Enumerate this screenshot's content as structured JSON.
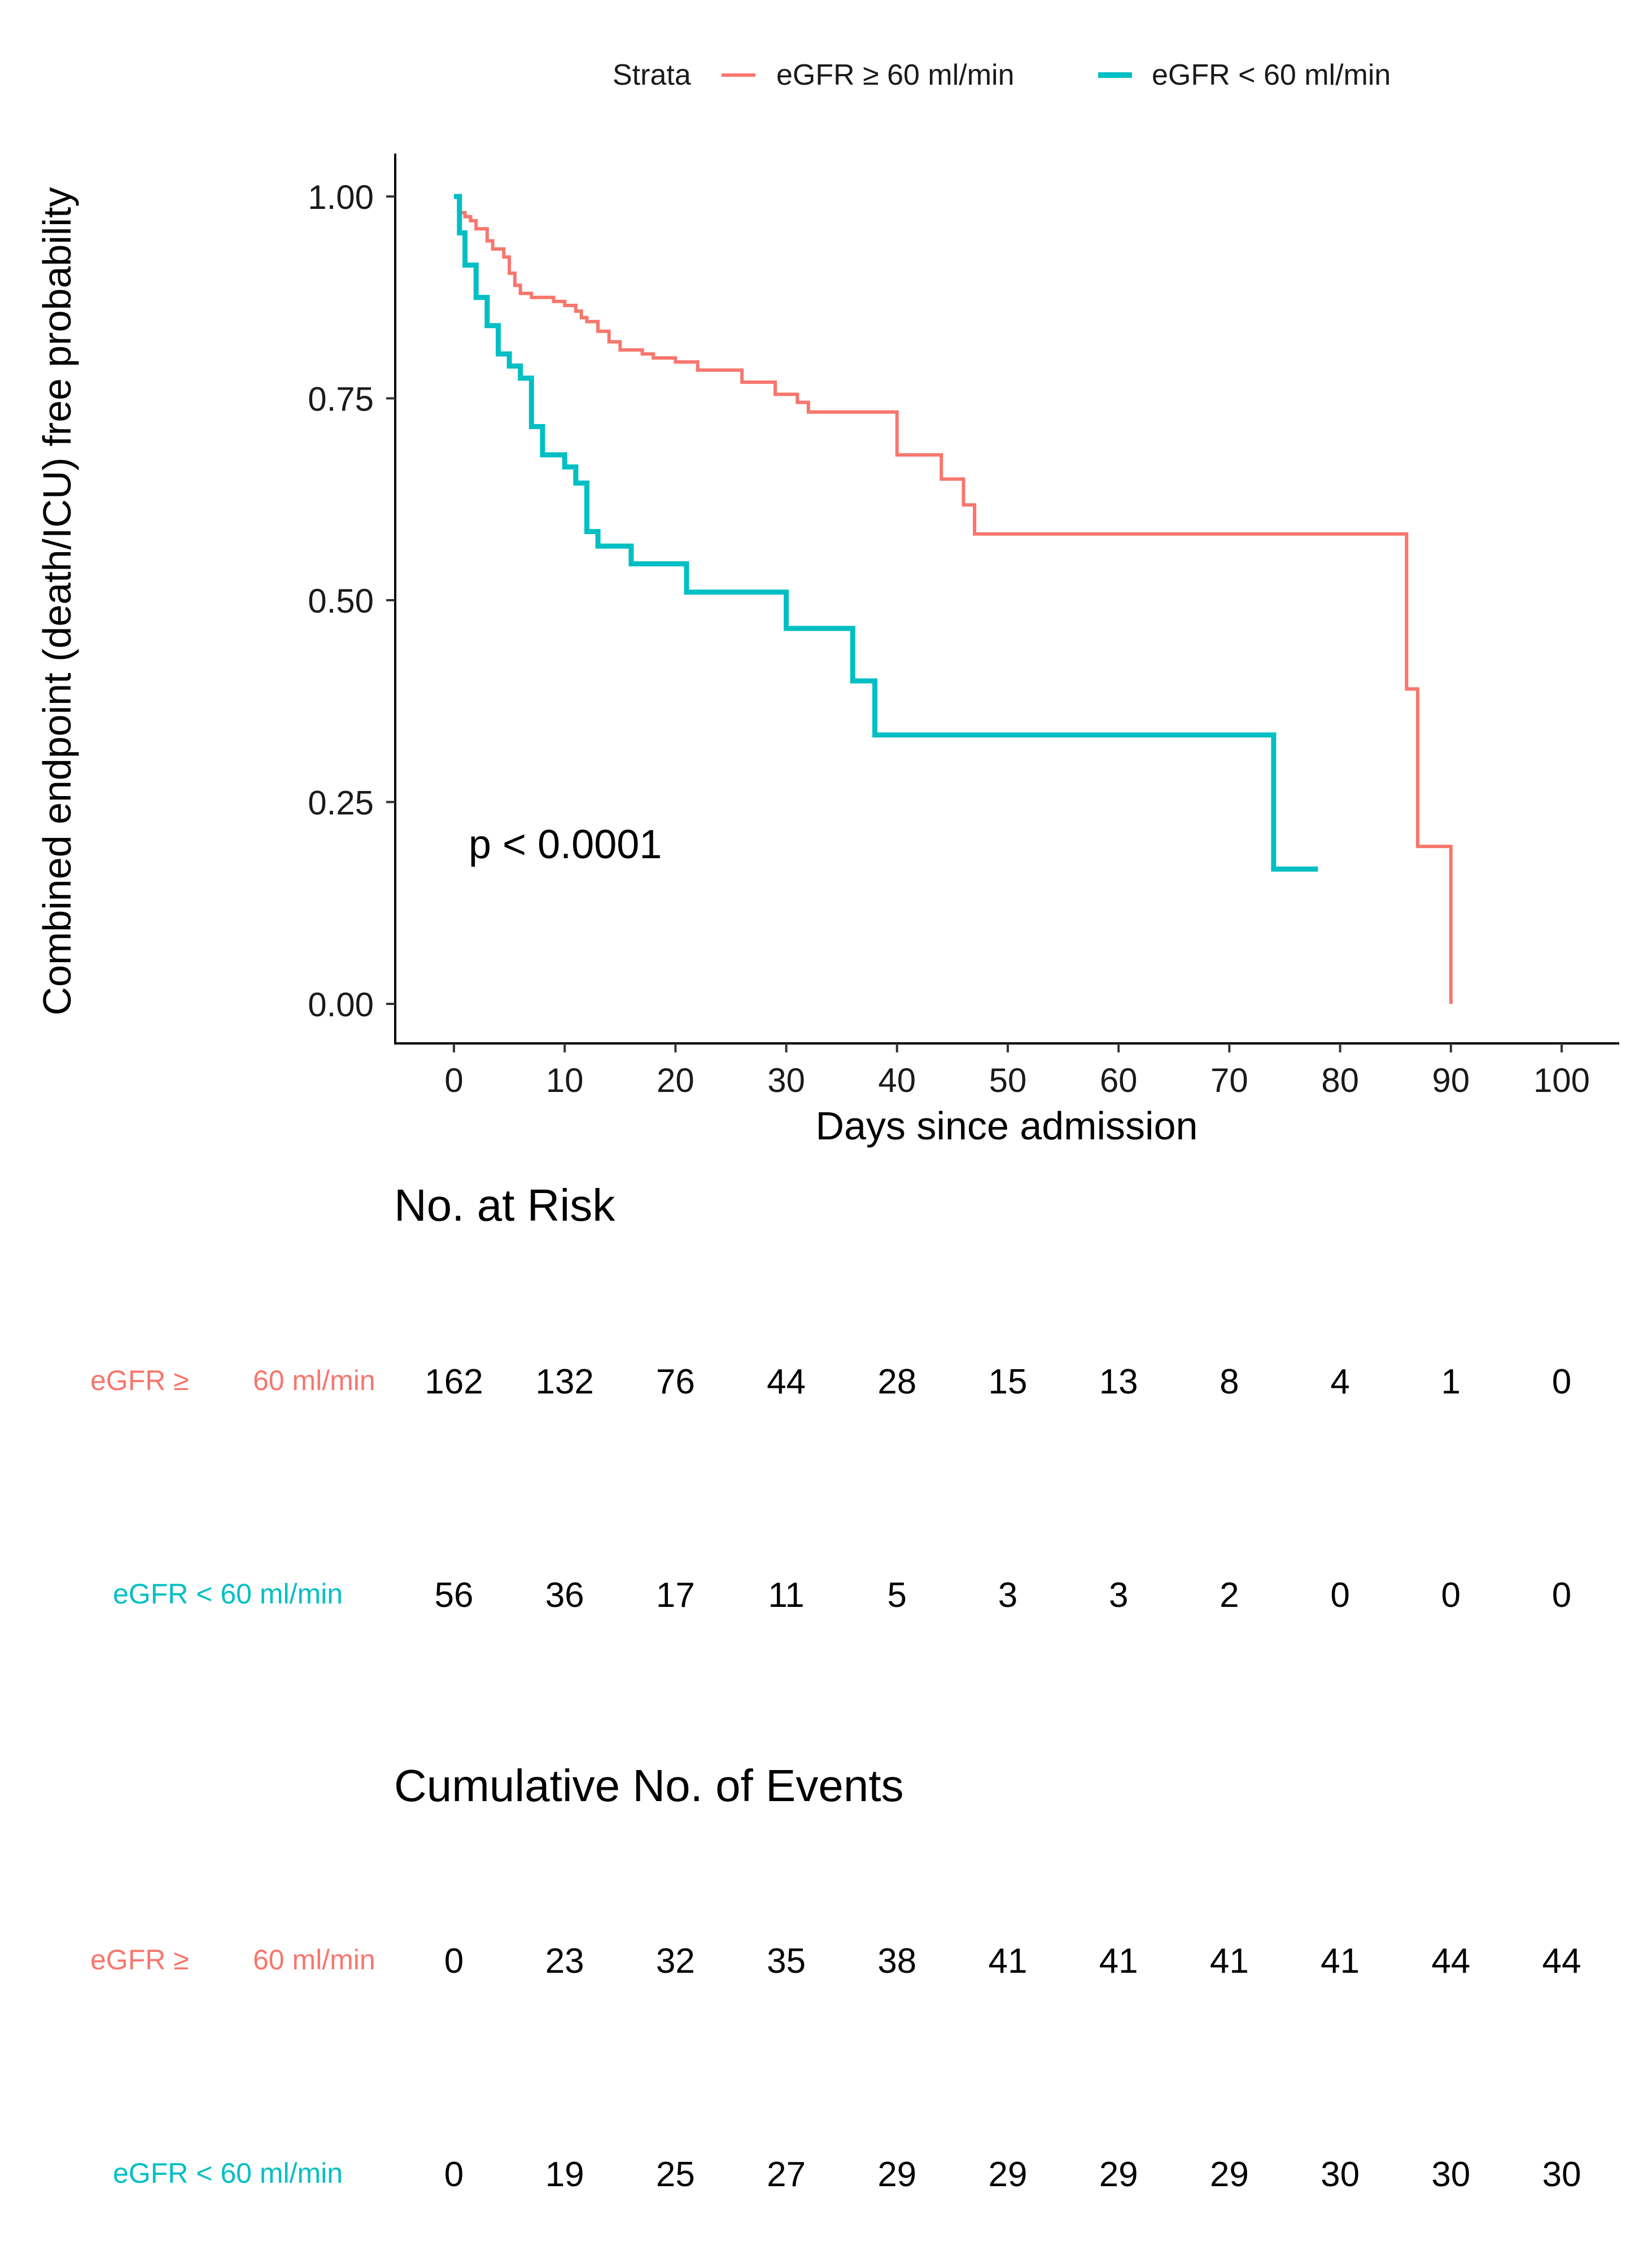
{
  "chart_data": {
    "type": "line",
    "subtype": "kaplan-meier",
    "xlabel": "Days since admission",
    "ylabel": "Combined endpoint (death/ICU) free probability",
    "xlim": [
      0,
      100
    ],
    "ylim": [
      0,
      1
    ],
    "x_ticks": [
      0,
      10,
      20,
      30,
      40,
      50,
      60,
      70,
      80,
      90,
      100
    ],
    "y_ticks": [
      "0.00",
      "0.25",
      "0.50",
      "0.75",
      "1.00"
    ],
    "y_tick_values": [
      0,
      0.25,
      0.5,
      0.75,
      1.0
    ],
    "annotation": "p < 0.0001",
    "legend": {
      "title": "Strata",
      "placement": "top",
      "entries": [
        "eGFR ≥ 60 ml/min",
        "eGFR < 60 ml/min"
      ]
    },
    "series": [
      {
        "name": "eGFR ≥ 60 ml/min",
        "color": "#F8766D",
        "steps": [
          [
            0,
            1.0
          ],
          [
            0.5,
            0.98
          ],
          [
            1,
            0.975
          ],
          [
            1.5,
            0.97
          ],
          [
            2,
            0.96
          ],
          [
            3,
            0.945
          ],
          [
            3.5,
            0.935
          ],
          [
            4.5,
            0.925
          ],
          [
            5,
            0.905
          ],
          [
            5.5,
            0.89
          ],
          [
            6,
            0.88
          ],
          [
            7,
            0.875
          ],
          [
            9,
            0.87
          ],
          [
            10,
            0.865
          ],
          [
            11,
            0.858
          ],
          [
            11.5,
            0.85
          ],
          [
            12,
            0.845
          ],
          [
            13,
            0.833
          ],
          [
            14,
            0.82
          ],
          [
            15,
            0.81
          ],
          [
            17,
            0.805
          ],
          [
            18,
            0.8
          ],
          [
            20,
            0.795
          ],
          [
            22,
            0.785
          ],
          [
            26,
            0.77
          ],
          [
            29,
            0.755
          ],
          [
            31,
            0.745
          ],
          [
            32,
            0.733
          ],
          [
            40,
            0.68
          ],
          [
            44,
            0.65
          ],
          [
            46,
            0.618
          ],
          [
            47,
            0.582
          ],
          [
            86,
            0.39
          ],
          [
            87,
            0.195
          ],
          [
            90,
            0.0
          ]
        ],
        "end_x": 90
      },
      {
        "name": "eGFR < 60 ml/min",
        "color": "#00BFC4",
        "steps": [
          [
            0,
            1.0
          ],
          [
            0.5,
            0.955
          ],
          [
            1,
            0.915
          ],
          [
            2,
            0.875
          ],
          [
            3,
            0.84
          ],
          [
            4,
            0.805
          ],
          [
            5,
            0.79
          ],
          [
            6,
            0.775
          ],
          [
            7,
            0.715
          ],
          [
            8,
            0.68
          ],
          [
            10,
            0.665
          ],
          [
            11,
            0.645
          ],
          [
            12,
            0.585
          ],
          [
            13,
            0.567
          ],
          [
            16,
            0.545
          ],
          [
            21,
            0.51
          ],
          [
            30,
            0.465
          ],
          [
            36,
            0.4
          ],
          [
            38,
            0.333
          ],
          [
            74,
            0.167
          ]
        ],
        "end_x": 78
      }
    ]
  },
  "risk_table": {
    "title": "No. at Risk",
    "rows": [
      {
        "label_left": "eGFR ≥",
        "label_right": "60 ml/min",
        "color": "#F8766D",
        "values": [
          "162",
          "132",
          "76",
          "44",
          "28",
          "15",
          "13",
          "8",
          "4",
          "1",
          "0"
        ]
      },
      {
        "label_left": "eGFR < 60 ml/min",
        "label_right": "",
        "color": "#00BFC4",
        "values": [
          "56",
          "36",
          "17",
          "11",
          "5",
          "3",
          "3",
          "2",
          "0",
          "0",
          "0"
        ]
      }
    ]
  },
  "events_table": {
    "title": "Cumulative No. of Events",
    "rows": [
      {
        "label_left": "eGFR ≥",
        "label_right": "60 ml/min",
        "color": "#F8766D",
        "values": [
          "0",
          "23",
          "32",
          "35",
          "38",
          "41",
          "41",
          "41",
          "41",
          "44",
          "44"
        ]
      },
      {
        "label_left": "eGFR < 60 ml/min",
        "label_right": "",
        "color": "#00BFC4",
        "values": [
          "0",
          "19",
          "25",
          "27",
          "29",
          "29",
          "29",
          "29",
          "30",
          "30",
          "30"
        ]
      }
    ]
  }
}
